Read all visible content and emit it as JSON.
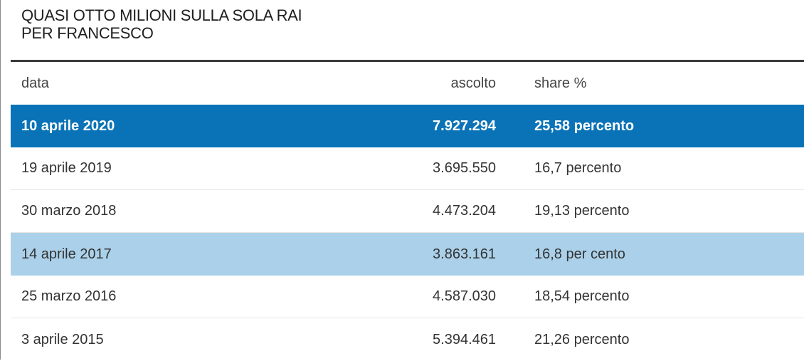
{
  "chart_data": {
    "type": "table",
    "title_lines": [
      "QUASI OTTO MILIONI SULLA SOLA RAI",
      "PER FRANCESCO"
    ],
    "columns": [
      "data",
      "ascolto",
      "share %"
    ],
    "rows": [
      {
        "data": "10 aprile 2020",
        "ascolto": "7.927.294",
        "share": "25,58 percento",
        "highlight": "strong"
      },
      {
        "data": "19 aprile 2019",
        "ascolto": "3.695.550",
        "share": "16,7 percento",
        "highlight": "none"
      },
      {
        "data": "30 marzo 2018",
        "ascolto": "4.473.204",
        "share": "19,13 percento",
        "highlight": "none"
      },
      {
        "data": "14 aprile 2017",
        "ascolto": "3.863.161",
        "share": "16,8 per cento",
        "highlight": "light"
      },
      {
        "data": "25 marzo 2016",
        "ascolto": "4.587.030",
        "share": "18,54 percento",
        "highlight": "none"
      },
      {
        "data": "3 aprile 2015",
        "ascolto": "5.394.461",
        "share": "21,26 percento",
        "highlight": "none"
      }
    ]
  },
  "colors": {
    "highlight_strong": "#0a73b7",
    "highlight_light": "#abd1ea",
    "rule": "#3a3a3a"
  }
}
